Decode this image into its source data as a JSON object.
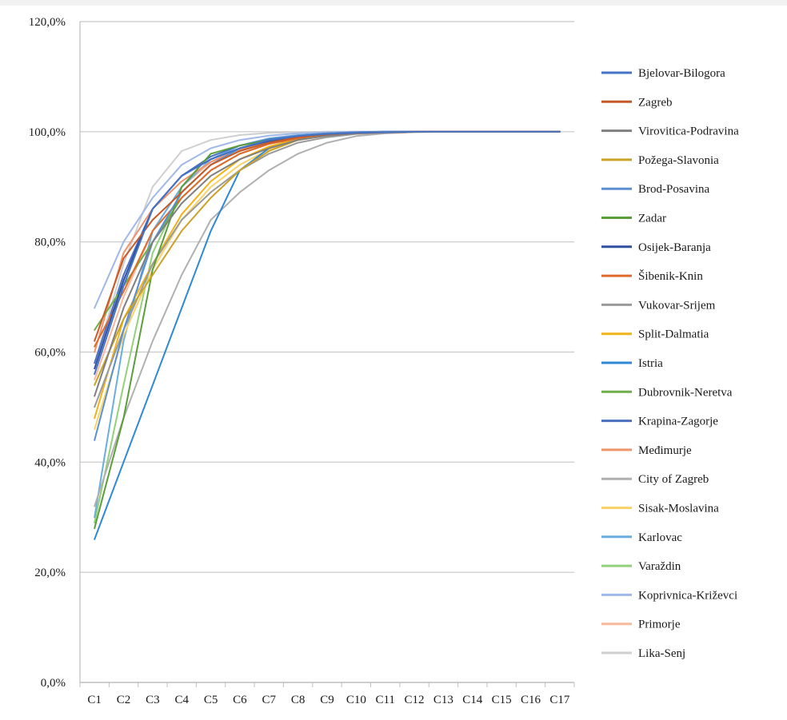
{
  "chart_data": {
    "type": "line",
    "title": "",
    "xlabel": "",
    "ylabel": "",
    "categories": [
      "C1",
      "C2",
      "C3",
      "C4",
      "C5",
      "C6",
      "C7",
      "C8",
      "C9",
      "C10",
      "C11",
      "C12",
      "C13",
      "C14",
      "C15",
      "C16",
      "C17"
    ],
    "y_ticks": [
      "0,0%",
      "20,0%",
      "40,0%",
      "60,0%",
      "80,0%",
      "100,0%",
      "120,0%"
    ],
    "ylim": [
      0,
      120
    ],
    "grid": "horizontal",
    "legend_position": "right",
    "series": [
      {
        "name": "Bjelovar-Bilogora",
        "color": "#4472c4",
        "values": [
          56,
          72,
          86,
          92,
          95,
          97,
          98.5,
          99.2,
          99.6,
          99.8,
          99.9,
          100,
          100,
          100,
          100,
          100,
          100
        ]
      },
      {
        "name": "Zagreb",
        "color": "#c55a28",
        "values": [
          62,
          77,
          84,
          89,
          94,
          96.5,
          98,
          99,
          99.5,
          99.8,
          99.9,
          100,
          100,
          100,
          100,
          100,
          100
        ]
      },
      {
        "name": "Virovitica-Podravina",
        "color": "#7f7f7f",
        "values": [
          52,
          68,
          80,
          87,
          92,
          95,
          97,
          98.5,
          99.3,
          99.7,
          99.9,
          100,
          100,
          100,
          100,
          100,
          100
        ]
      },
      {
        "name": "Požega-Slavonia",
        "color": "#c9a227",
        "values": [
          54,
          66,
          74,
          82,
          88,
          93,
          96.5,
          98.5,
          99.4,
          99.7,
          99.9,
          100,
          100,
          100,
          100,
          100,
          100
        ]
      },
      {
        "name": "Brod-Posavina",
        "color": "#5b8fd0",
        "values": [
          44,
          64,
          80,
          89,
          94,
          97,
          98.5,
          99.3,
          99.7,
          99.9,
          100,
          100,
          100,
          100,
          100,
          100,
          100
        ]
      },
      {
        "name": "Zadar",
        "color": "#5a9e3a",
        "values": [
          28,
          48,
          75,
          90,
          96,
          97.5,
          98.5,
          99.2,
          99.6,
          99.8,
          99.9,
          100,
          100,
          100,
          100,
          100,
          100
        ]
      },
      {
        "name": "Osijek-Baranja",
        "color": "#2f4f9f",
        "values": [
          57,
          73,
          86,
          92,
          95,
          97,
          98.3,
          99.1,
          99.6,
          99.8,
          99.9,
          100,
          100,
          100,
          100,
          100,
          100
        ]
      },
      {
        "name": "Šibenik-Knin",
        "color": "#e06a2c",
        "values": [
          61,
          71,
          82,
          88,
          93,
          96,
          97.8,
          98.8,
          99.4,
          99.7,
          99.9,
          100,
          100,
          100,
          100,
          100,
          100
        ]
      },
      {
        "name": "Vukovar-Srijem",
        "color": "#9a9a9a",
        "values": [
          50,
          64,
          76,
          84,
          89,
          93,
          96,
          98,
          99,
          99.6,
          99.8,
          100,
          100,
          100,
          100,
          100,
          100
        ]
      },
      {
        "name": "Split-Dalmatia",
        "color": "#f2b318",
        "values": [
          48,
          66,
          76,
          85,
          91,
          95,
          97.3,
          98.7,
          99.4,
          99.7,
          99.9,
          100,
          100,
          100,
          100,
          100,
          100
        ]
      },
      {
        "name": "Istria",
        "color": "#2e88d6",
        "values": [
          26,
          40,
          54,
          68,
          82,
          93,
          97,
          99,
          99.6,
          99.8,
          99.9,
          100,
          100,
          100,
          100,
          100,
          100
        ]
      },
      {
        "name": "Dubrovnik-Neretva",
        "color": "#6fae4a",
        "values": [
          64,
          72,
          80,
          88,
          93,
          96,
          97.8,
          98.8,
          99.4,
          99.7,
          99.9,
          100,
          100,
          100,
          100,
          100,
          100
        ]
      },
      {
        "name": "Krapina-Zagorje",
        "color": "#4a6fc0",
        "values": [
          58,
          74,
          86,
          92,
          95.5,
          97.5,
          98.6,
          99.3,
          99.7,
          99.9,
          100,
          100,
          100,
          100,
          100,
          100,
          100
        ]
      },
      {
        "name": "Međimurje",
        "color": "#f0936a",
        "values": [
          60,
          78,
          86,
          91,
          94.5,
          96.8,
          98.2,
          99.1,
          99.6,
          99.8,
          99.9,
          100,
          100,
          100,
          100,
          100,
          100
        ]
      },
      {
        "name": "City of Zagreb",
        "color": "#b0b0b0",
        "values": [
          32,
          48,
          62,
          74,
          84,
          89,
          93,
          96,
          98,
          99.2,
          99.7,
          99.9,
          100,
          100,
          100,
          100,
          100
        ]
      },
      {
        "name": "Sisak-Moslavina",
        "color": "#f9d36a",
        "values": [
          46,
          63,
          75,
          84,
          90,
          94,
          96.8,
          98.5,
          99.3,
          99.7,
          99.9,
          100,
          100,
          100,
          100,
          100,
          100
        ]
      },
      {
        "name": "Karlovac",
        "color": "#6aaee0",
        "values": [
          30,
          62,
          82,
          90,
          95,
          97.5,
          98.8,
          99.4,
          99.7,
          99.9,
          100,
          100,
          100,
          100,
          100,
          100,
          100
        ]
      },
      {
        "name": "Varaždin",
        "color": "#93d07a",
        "values": [
          29,
          54,
          78,
          89,
          94,
          96.8,
          98.3,
          99.2,
          99.6,
          99.8,
          99.9,
          100,
          100,
          100,
          100,
          100,
          100
        ]
      },
      {
        "name": "Koprivnica-Križevci",
        "color": "#9fb8e8",
        "values": [
          68,
          80,
          88,
          94,
          97,
          98.5,
          99.3,
          99.7,
          99.9,
          100,
          100,
          100,
          100,
          100,
          100,
          100,
          100
        ]
      },
      {
        "name": "Primorje",
        "color": "#f7b89c",
        "values": [
          55,
          70,
          82,
          90,
          94.5,
          97,
          98.5,
          99.3,
          99.7,
          99.9,
          100,
          100,
          100,
          100,
          100,
          100,
          100
        ]
      },
      {
        "name": "Lika-Senj",
        "color": "#cfcfcf",
        "values": [
          58,
          76,
          90,
          96.5,
          98.5,
          99.4,
          99.8,
          99.9,
          100,
          100,
          100,
          100,
          100,
          100,
          100,
          100,
          100
        ]
      }
    ]
  }
}
